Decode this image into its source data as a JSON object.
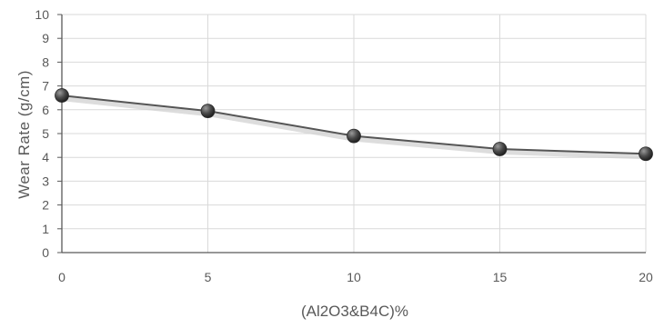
{
  "chart_data": {
    "type": "line",
    "xlabel": "(Al2O3&B4C)%",
    "ylabel": "Wear Rate (g/cm)",
    "x": [
      0,
      5,
      10,
      15,
      20
    ],
    "x_ticks": [
      "0",
      "5",
      "10",
      "15",
      "20"
    ],
    "y_ticks": [
      "0",
      "1",
      "2",
      "3",
      "4",
      "5",
      "6",
      "7",
      "8",
      "9",
      "10"
    ],
    "xlim": [
      0,
      20
    ],
    "ylim": [
      0,
      10
    ],
    "series": [
      {
        "values": [
          6.6,
          5.95,
          4.9,
          4.35,
          4.15
        ]
      }
    ],
    "grid": true,
    "colors": {
      "line": "#555555",
      "marker": "#3a3a3a",
      "grid": "#d9d9d9",
      "axis": "#595959"
    }
  }
}
